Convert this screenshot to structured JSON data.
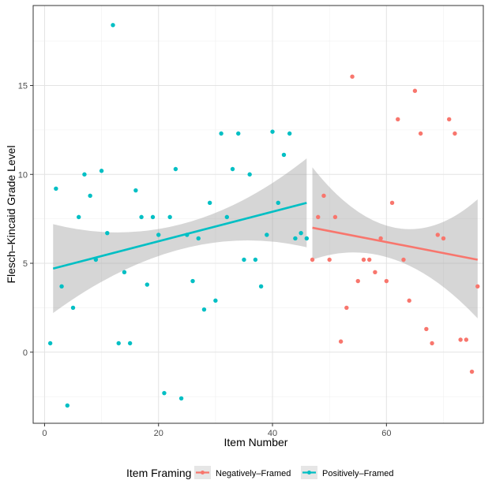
{
  "chart_data": {
    "type": "scatter",
    "title": "",
    "xlabel": "Item Number",
    "ylabel": "Flesch–Kincaid Grade Level",
    "xlim": [
      -2,
      77
    ],
    "ylim": [
      -4,
      19.5
    ],
    "xticks": [
      0,
      20,
      40,
      60
    ],
    "yticks": [
      0,
      5,
      10,
      15
    ],
    "grid": true,
    "legend": {
      "title": "Item Framing",
      "position": "bottom",
      "entries": [
        "Negatively–Framed",
        "Positively–Framed"
      ]
    },
    "colors": {
      "negative": "#F8766D",
      "positive": "#00BFC4",
      "ribbon": "#999999"
    },
    "series": [
      {
        "name": "Positively–Framed",
        "color": "#00BFC4",
        "points": [
          [
            1,
            0.5
          ],
          [
            2,
            9.2
          ],
          [
            3,
            3.7
          ],
          [
            4,
            -3.0
          ],
          [
            5,
            2.5
          ],
          [
            6,
            7.6
          ],
          [
            7,
            10.0
          ],
          [
            8,
            8.8
          ],
          [
            9,
            5.2
          ],
          [
            10,
            10.2
          ],
          [
            11,
            6.7
          ],
          [
            12,
            18.4
          ],
          [
            13,
            0.5
          ],
          [
            14,
            4.5
          ],
          [
            15,
            0.5
          ],
          [
            16,
            9.1
          ],
          [
            17,
            7.6
          ],
          [
            18,
            3.8
          ],
          [
            19,
            7.6
          ],
          [
            20,
            6.6
          ],
          [
            21,
            -2.3
          ],
          [
            22,
            7.6
          ],
          [
            23,
            10.3
          ],
          [
            24,
            -2.6
          ],
          [
            25,
            6.6
          ],
          [
            26,
            4.0
          ],
          [
            27,
            6.4
          ],
          [
            28,
            2.4
          ],
          [
            29,
            8.4
          ],
          [
            30,
            2.9
          ],
          [
            31,
            12.3
          ],
          [
            32,
            7.6
          ],
          [
            33,
            10.3
          ],
          [
            34,
            12.3
          ],
          [
            35,
            5.2
          ],
          [
            36,
            10.0
          ],
          [
            37,
            5.2
          ],
          [
            38,
            3.7
          ],
          [
            39,
            6.6
          ],
          [
            40,
            12.4
          ],
          [
            41,
            8.4
          ],
          [
            42,
            11.1
          ],
          [
            43,
            12.3
          ],
          [
            44,
            6.4
          ],
          [
            45,
            6.7
          ],
          [
            46,
            6.4
          ]
        ],
        "fit": {
          "x": [
            1.5,
            46
          ],
          "y": [
            4.7,
            8.4
          ],
          "band_lower": [
            2.2,
            5.9
          ],
          "band_upper": [
            7.2,
            10.9
          ],
          "band_mid_x": 24,
          "band_mid_lower": 5.8,
          "band_mid_upper": 7.2
        }
      },
      {
        "name": "Negatively–Framed",
        "color": "#F8766D",
        "points": [
          [
            47,
            5.2
          ],
          [
            48,
            7.6
          ],
          [
            49,
            8.8
          ],
          [
            50,
            5.2
          ],
          [
            51,
            7.6
          ],
          [
            52,
            0.6
          ],
          [
            53,
            2.5
          ],
          [
            54,
            15.5
          ],
          [
            55,
            4.0
          ],
          [
            56,
            5.2
          ],
          [
            57,
            5.2
          ],
          [
            58,
            4.5
          ],
          [
            59,
            6.4
          ],
          [
            60,
            4.0
          ],
          [
            61,
            8.4
          ],
          [
            62,
            13.1
          ],
          [
            63,
            5.2
          ],
          [
            64,
            2.9
          ],
          [
            65,
            14.7
          ],
          [
            66,
            12.3
          ],
          [
            67,
            1.3
          ],
          [
            68,
            0.5
          ],
          [
            69,
            6.6
          ],
          [
            70,
            6.4
          ],
          [
            71,
            13.1
          ],
          [
            72,
            12.3
          ],
          [
            73,
            0.7
          ],
          [
            74,
            0.7
          ],
          [
            75,
            -1.1
          ],
          [
            76,
            3.7
          ]
        ],
        "fit": {
          "x": [
            47,
            76
          ],
          "y": [
            7.0,
            5.2
          ],
          "band_lower": [
            5.2,
            1.9
          ],
          "band_upper": [
            10.4,
            8.6
          ],
          "band_mid_x": 61.5,
          "band_mid_lower": 5.2,
          "band_mid_upper": 7.0
        }
      }
    ]
  }
}
